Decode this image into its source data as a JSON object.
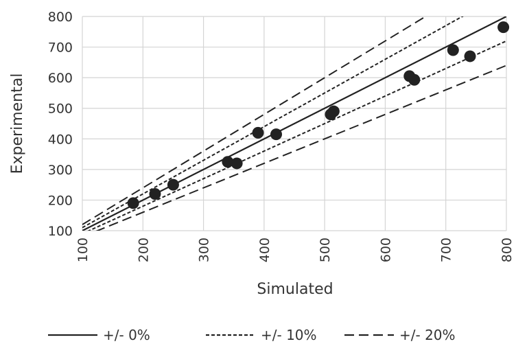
{
  "chart_data": {
    "type": "scatter",
    "title": "",
    "xlabel": "Simulated",
    "ylabel": "Experimental",
    "xlim": [
      100,
      800
    ],
    "ylim": [
      100,
      800
    ],
    "x_ticks": [
      100,
      200,
      300,
      400,
      500,
      600,
      700,
      800
    ],
    "y_ticks": [
      100,
      200,
      300,
      400,
      500,
      600,
      700,
      800
    ],
    "grid": true,
    "legend_position": "bottom",
    "points": [
      {
        "x": 184,
        "y": 190
      },
      {
        "x": 220,
        "y": 220
      },
      {
        "x": 250,
        "y": 250
      },
      {
        "x": 340,
        "y": 325
      },
      {
        "x": 355,
        "y": 320
      },
      {
        "x": 390,
        "y": 420
      },
      {
        "x": 420,
        "y": 415
      },
      {
        "x": 510,
        "y": 480
      },
      {
        "x": 515,
        "y": 490
      },
      {
        "x": 640,
        "y": 605
      },
      {
        "x": 648,
        "y": 593
      },
      {
        "x": 712,
        "y": 690
      },
      {
        "x": 740,
        "y": 670
      },
      {
        "x": 795,
        "y": 765
      }
    ],
    "reference_lines": [
      {
        "label": "+/- 0%",
        "style": "solid",
        "factors": [
          1.0
        ]
      },
      {
        "label": "+/- 10%",
        "style": "dotted",
        "factors": [
          1.1,
          0.9
        ]
      },
      {
        "label": "+/- 20%",
        "style": "dashed",
        "factors": [
          1.2,
          0.8
        ]
      }
    ],
    "colors": {
      "marker": "#222222",
      "line": "#222222",
      "grid": "#d4d4d4"
    }
  }
}
